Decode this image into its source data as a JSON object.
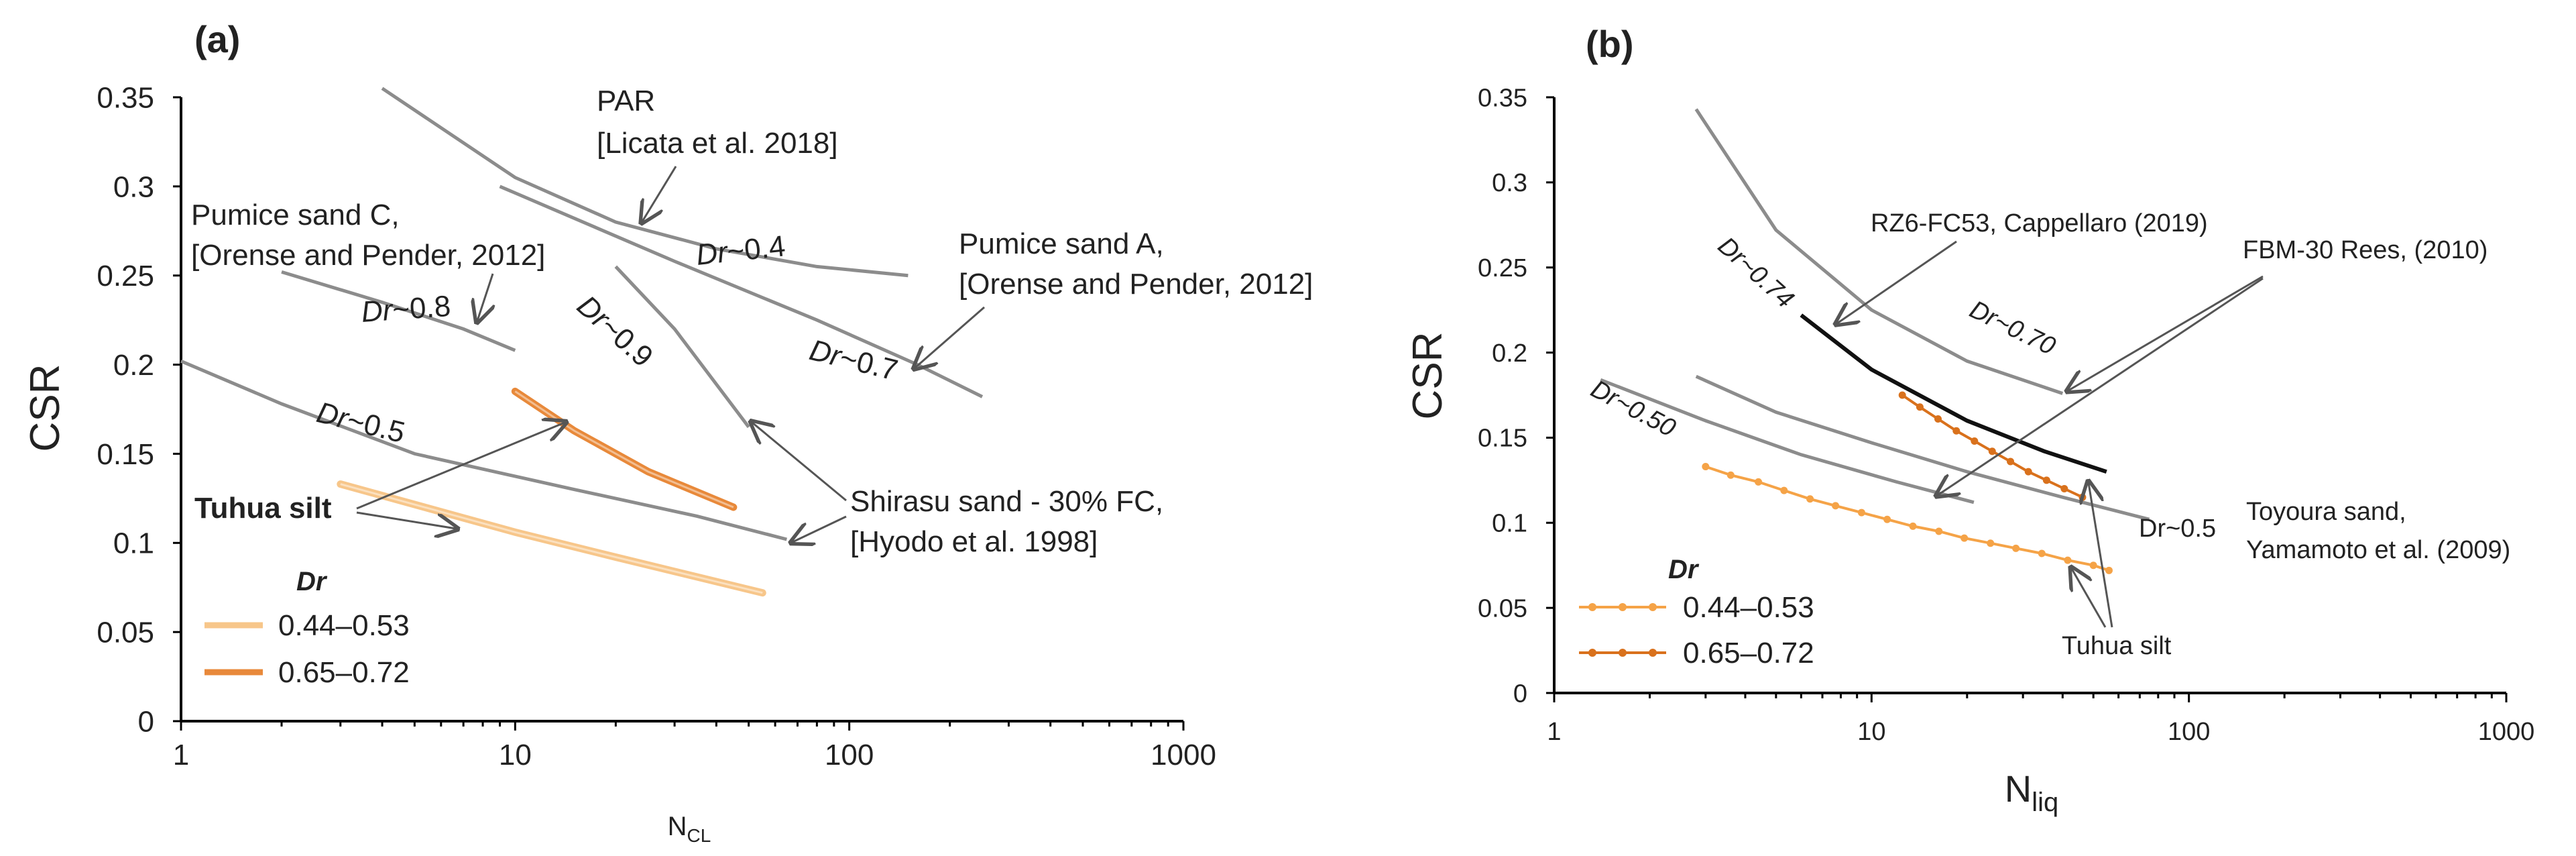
{
  "colors": {
    "series_low": "#f7c68a",
    "series_high": "#e8893a",
    "series_low_b": "#f5a347",
    "series_high_b": "#d9711c",
    "reference": "#8c8c8c",
    "reference_dark": "#111111"
  },
  "chart_data": [
    {
      "type": "line",
      "panel_label": "(a)",
      "xlabel": "N",
      "xlabel_sub": "CL",
      "ylabel": "CSR",
      "xscale": "log",
      "xlim": [
        1,
        1000
      ],
      "ylim": [
        0,
        0.35
      ],
      "xticks": [
        "1",
        "10",
        "100",
        "1000"
      ],
      "yticks": [
        "0",
        "0.05",
        "0.1",
        "0.15",
        "0.2",
        "0.25",
        "0.3",
        "0.35"
      ],
      "legend": {
        "title": "Dr",
        "placement": "bottom-left",
        "entries": [
          "0.44–0.53",
          "0.65–0.72"
        ]
      },
      "series": [
        {
          "name": "0.44–0.53",
          "x": [
            3,
            10,
            20,
            55
          ],
          "y": [
            0.133,
            0.106,
            0.092,
            0.072
          ]
        },
        {
          "name": "0.65–0.72",
          "x": [
            10,
            15,
            25,
            45
          ],
          "y": [
            0.185,
            0.163,
            0.14,
            0.12
          ]
        }
      ],
      "reference_curves": [
        {
          "label_id": "par",
          "x": [
            4,
            10,
            20,
            40,
            80,
            150
          ],
          "y": [
            0.355,
            0.305,
            0.28,
            0.265,
            0.255,
            0.25
          ]
        },
        {
          "label_id": "pumice_a",
          "x": [
            9,
            30,
            80,
            160,
            250
          ],
          "y": [
            0.3,
            0.258,
            0.225,
            0.2,
            0.182
          ]
        },
        {
          "label_id": "pumice_c",
          "x": [
            2,
            4,
            7,
            10
          ],
          "y": [
            0.252,
            0.235,
            0.22,
            0.208
          ]
        },
        {
          "label_id": "shirasu_09",
          "x": [
            20,
            30,
            50
          ],
          "y": [
            0.255,
            0.22,
            0.165
          ]
        },
        {
          "label_id": "shirasu_05",
          "x": [
            1,
            2,
            5,
            15,
            35,
            65
          ],
          "y": [
            0.202,
            0.178,
            0.15,
            0.13,
            0.115,
            0.102
          ]
        }
      ],
      "annotations": {
        "par_title": "PAR",
        "par_ref": "[Licata et al. 2018]",
        "pumice_c_title": "Pumice sand C,",
        "pumice_c_ref": "[Orense and Pender, 2012]",
        "pumice_a_title": "Pumice sand A,",
        "pumice_a_ref": "[Orense and Pender, 2012]",
        "shirasu_title": "Shirasu sand - 30% FC,",
        "shirasu_ref": "[Hyodo et al. 1998]",
        "tuhua": "Tuhua silt",
        "dr_prefix": "Dr",
        "dr_04": "~0.4",
        "dr_08": "~0.8",
        "dr_09": "~0.9",
        "dr_07": "~0.7",
        "dr_05": "~0.5"
      }
    },
    {
      "type": "line",
      "panel_label": "(b)",
      "xlabel": "N",
      "xlabel_sub": "liq",
      "ylabel": "CSR",
      "xscale": "log",
      "xlim": [
        1,
        1000
      ],
      "ylim": [
        0,
        0.35
      ],
      "xticks": [
        "1",
        "10",
        "100",
        "1000"
      ],
      "yticks": [
        "0",
        "0.05",
        "0.1",
        "0.15",
        "0.2",
        "0.25",
        "0.3",
        "0.35"
      ],
      "legend": {
        "title": "Dr",
        "placement": "bottom-left",
        "entries": [
          "0.44–0.53",
          "0.65–0.72"
        ]
      },
      "series": [
        {
          "name": "0.44–0.53",
          "x": [
            3,
            3.6,
            4.4,
            5.3,
            6.4,
            7.7,
            9.3,
            11.2,
            13.5,
            16.3,
            19.6,
            23.7,
            28.5,
            34.4,
            41.5,
            50,
            56
          ],
          "y": [
            0.133,
            0.128,
            0.124,
            0.119,
            0.114,
            0.11,
            0.106,
            0.102,
            0.098,
            0.095,
            0.091,
            0.088,
            0.085,
            0.082,
            0.078,
            0.075,
            0.072
          ]
        },
        {
          "name": "0.65–0.72",
          "x": [
            12.5,
            14.2,
            16.2,
            18.5,
            21.1,
            24,
            27.4,
            31.2,
            35.6,
            40.5,
            46.2
          ],
          "y": [
            0.175,
            0.168,
            0.161,
            0.154,
            0.148,
            0.142,
            0.136,
            0.13,
            0.125,
            0.12,
            0.115
          ]
        }
      ],
      "reference_curves": [
        {
          "label_id": "rz6",
          "style": "dark",
          "x": [
            6,
            10,
            20,
            35,
            55
          ],
          "y": [
            0.222,
            0.19,
            0.16,
            0.142,
            0.13
          ]
        },
        {
          "label_id": "toyoura_07",
          "x": [
            2.8,
            5,
            10,
            20,
            40
          ],
          "y": [
            0.343,
            0.272,
            0.225,
            0.195,
            0.176
          ]
        },
        {
          "label_id": "fbm",
          "x": [
            2.8,
            5,
            10,
            20,
            40,
            75
          ],
          "y": [
            0.186,
            0.165,
            0.147,
            0.13,
            0.115,
            0.102
          ]
        },
        {
          "label_id": "toyoura_05",
          "x": [
            1.4,
            3,
            6,
            12,
            21
          ],
          "y": [
            0.184,
            0.16,
            0.14,
            0.124,
            0.112
          ]
        }
      ],
      "annotations": {
        "rz6": "RZ6-FC53, Cappellaro (2019)",
        "fbm": "FBM-30 Rees, (2010)",
        "toyoura_title": "Toyoura sand,",
        "toyoura_ref": "Yamamoto et al. (2009)",
        "tuhua": "Tuhua silt",
        "dr_074": "Dr~0.74",
        "dr_070": "Dr~0.70",
        "dr_050": "Dr~0.50",
        "dr_05": "Dr~0.5"
      }
    }
  ]
}
